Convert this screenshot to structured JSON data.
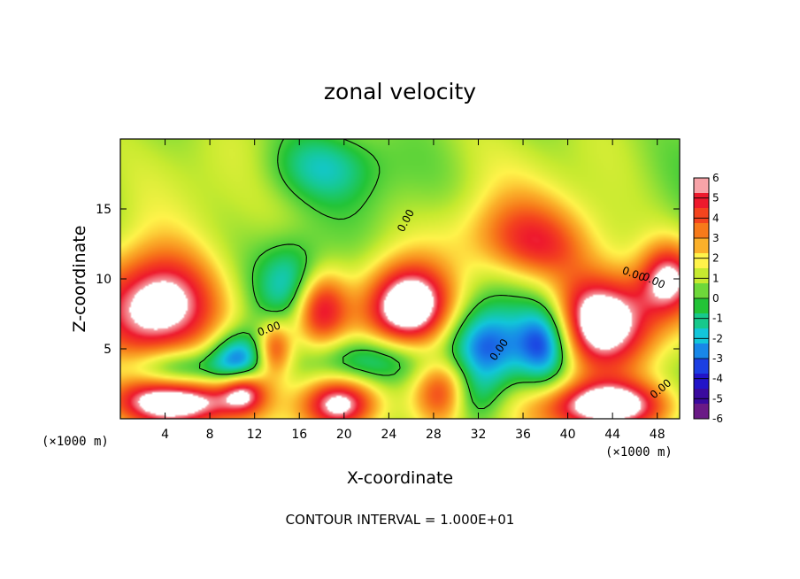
{
  "chart_data": {
    "type": "heatmap",
    "title": "zonal velocity",
    "xlabel": "X-coordinate",
    "ylabel": "Z-coordinate",
    "x_unit": "(×1000 m)",
    "z_unit": "(×1000 m)",
    "xlim": [
      0,
      50
    ],
    "ylim": [
      0,
      20
    ],
    "x_ticks": [
      4,
      8,
      12,
      16,
      20,
      24,
      28,
      32,
      36,
      40,
      44,
      48
    ],
    "y_ticks": [
      5,
      10,
      15
    ],
    "colorbar": {
      "min": -6,
      "max": 6,
      "ticks": [
        6,
        5,
        4,
        3,
        2,
        1,
        0,
        -1,
        -2,
        -3,
        -4,
        -5,
        -6
      ],
      "colors": [
        "#f7a3a8",
        "#ee1a2d",
        "#f4441e",
        "#f77a1a",
        "#fbb02a",
        "#fff34a",
        "#c7ea2f",
        "#6ed83a",
        "#23c437",
        "#17c98c",
        "#12c6d9",
        "#1887e8",
        "#1c3fe2",
        "#2214c8",
        "#3a0a9e",
        "#6a1a86"
      ]
    },
    "contour_labels": [
      "0.00",
      "0.00",
      "0.00",
      "0.00",
      "0.00",
      "0.00"
    ],
    "contour_interval_text": "CONTOUR INTERVAL = 1.000E+01",
    "blobs": [
      {
        "x": 3.5,
        "z": 8.0,
        "rx": 5.5,
        "rz": 4.0,
        "v": 6.8
      },
      {
        "x": 17.7,
        "z": 8.3,
        "rx": 2.6,
        "rz": 3.0,
        "v": 6.8
      },
      {
        "x": 19.5,
        "z": 1.0,
        "rx": 3.3,
        "rz": 2.0,
        "v": 6.5
      },
      {
        "x": 25.8,
        "z": 8.0,
        "rx": 3.7,
        "rz": 3.0,
        "v": 7.0
      },
      {
        "x": 29.0,
        "z": 1.8,
        "rx": 2.7,
        "rz": 2.4,
        "v": 6.2
      },
      {
        "x": 43.0,
        "z": 7.0,
        "rx": 5.0,
        "rz": 3.5,
        "v": 6.8
      },
      {
        "x": 43.5,
        "z": 0.9,
        "rx": 5.5,
        "rz": 1.8,
        "v": 6.5
      },
      {
        "x": 5.0,
        "z": 1.2,
        "rx": 6.0,
        "rz": 1.8,
        "v": 6.0
      },
      {
        "x": 36.0,
        "z": 13.0,
        "rx": 6.0,
        "rz": 3.0,
        "v": 3.2
      },
      {
        "x": 38.0,
        "z": 12.0,
        "rx": 4.0,
        "rz": 2.0,
        "v": 1.0
      },
      {
        "x": 13.8,
        "z": 5.0,
        "rx": 1.6,
        "rz": 2.0,
        "v": 3.8
      },
      {
        "x": 11.0,
        "z": 2.0,
        "rx": 2.0,
        "rz": 1.5,
        "v": 4.0
      },
      {
        "x": 49.0,
        "z": 10.0,
        "rx": 2.5,
        "rz": 2.5,
        "v": 4.5
      },
      {
        "x": 16.5,
        "z": 9.5,
        "rx": 3.5,
        "rz": 3.0,
        "v": -5.0
      },
      {
        "x": 10.5,
        "z": 4.2,
        "rx": 2.5,
        "rz": 2.0,
        "v": -4.5
      },
      {
        "x": 32.5,
        "z": 5.0,
        "rx": 3.5,
        "rz": 3.0,
        "v": -4.5
      },
      {
        "x": 38.0,
        "z": 5.5,
        "rx": 2.5,
        "rz": 3.0,
        "v": -5.0
      },
      {
        "x": 22.5,
        "z": 4.2,
        "rx": 5.0,
        "rz": 1.8,
        "v": -2.8
      },
      {
        "x": 18.0,
        "z": 18.0,
        "rx": 5.0,
        "rz": 2.5,
        "v": -2.0
      },
      {
        "x": 30.5,
        "z": 1.5,
        "rx": 3.0,
        "rz": 2.0,
        "v": -3.0
      },
      {
        "x": 5.0,
        "z": 3.5,
        "rx": 4.5,
        "rz": 1.5,
        "v": -3.0
      }
    ]
  }
}
